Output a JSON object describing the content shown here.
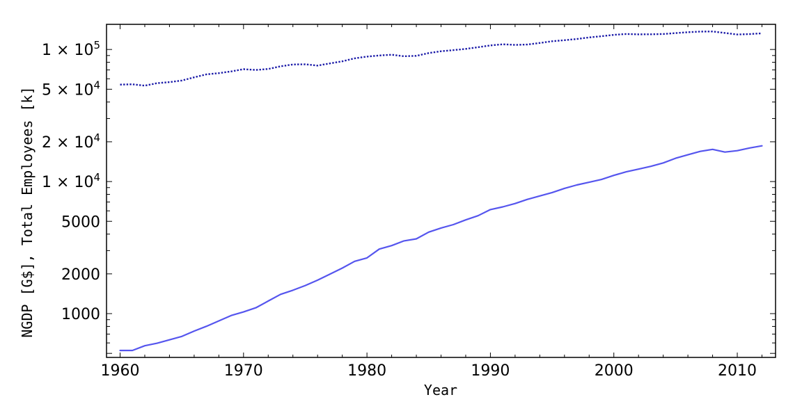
{
  "chart_data": {
    "type": "line",
    "title": "",
    "xlabel": "Year",
    "ylabel": "NGDP [G$], Total Employees [k]",
    "yscale": "log",
    "xlim": [
      1958.9,
      2013.1
    ],
    "ylim": [
      466,
      155000
    ],
    "grid": false,
    "legend": null,
    "x_ticks": [
      1960,
      1970,
      1980,
      1990,
      2000,
      2010
    ],
    "x_tick_labels": [
      "1960",
      "1970",
      "1980",
      "1990",
      "2000",
      "2010"
    ],
    "y_ticks": [
      1000,
      2000,
      5000,
      10000,
      20000,
      50000,
      100000
    ],
    "y_tick_labels": [
      {
        "mantissa": "1000",
        "exp": ""
      },
      {
        "mantissa": "2000",
        "exp": ""
      },
      {
        "mantissa": "5000",
        "exp": ""
      },
      {
        "mantissa": "1 × 10",
        "exp": "4"
      },
      {
        "mantissa": "2 × 10",
        "exp": "4"
      },
      {
        "mantissa": "5 × 10",
        "exp": "4"
      },
      {
        "mantissa": "1 × 10",
        "exp": "5"
      }
    ],
    "x": [
      1960,
      1961,
      1962,
      1963,
      1964,
      1965,
      1966,
      1967,
      1968,
      1969,
      1970,
      1971,
      1972,
      1973,
      1974,
      1975,
      1976,
      1977,
      1978,
      1979,
      1980,
      1981,
      1982,
      1983,
      1984,
      1985,
      1986,
      1987,
      1988,
      1989,
      1990,
      1991,
      1992,
      1993,
      1994,
      1995,
      1996,
      1997,
      1998,
      1999,
      2000,
      2001,
      2002,
      2003,
      2004,
      2005,
      2006,
      2007,
      2008,
      2009,
      2010,
      2011,
      2012
    ],
    "series": [
      {
        "name": "NGDP [G$]",
        "style": "solid",
        "color": "#5555ee",
        "values": [
          526,
          526,
          571,
          597,
          633,
          672,
          738,
          802,
          881,
          968,
          1030,
          1107,
          1245,
          1400,
          1503,
          1632,
          1792,
          1990,
          2213,
          2490,
          2640,
          3080,
          3272,
          3555,
          3683,
          4140,
          4447,
          4721,
          5127,
          5510,
          6136,
          6427,
          6820,
          7327,
          7780,
          8260,
          8876,
          9427,
          9882,
          10370,
          11140,
          11850,
          12420,
          13040,
          13830,
          15010,
          15950,
          16920,
          17530,
          16720,
          17120,
          17960,
          18640
        ]
      },
      {
        "name": "Total Employees [k]",
        "style": "dotted",
        "color": "#1a1aa8",
        "values": [
          54200,
          54500,
          53200,
          55600,
          56600,
          58200,
          61500,
          64800,
          66200,
          68200,
          70900,
          70000,
          71200,
          74500,
          77000,
          77200,
          75500,
          78400,
          81300,
          85700,
          88300,
          90000,
          91200,
          88900,
          89500,
          94000,
          97000,
          98800,
          101000,
          104000,
          107300,
          109400,
          108200,
          109000,
          112000,
          115500,
          117600,
          120000,
          123400,
          126000,
          129000,
          131000,
          130200,
          130400,
          131000,
          133000,
          135100,
          136600,
          136800,
          133300,
          129900,
          130800,
          132600
        ]
      }
    ]
  }
}
